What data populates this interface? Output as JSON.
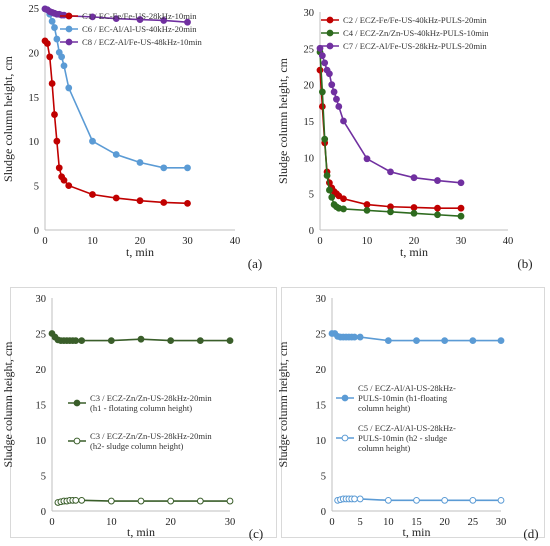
{
  "chart_data": [
    {
      "type": "line",
      "panel_label": "(a)",
      "xlabel": "t, min",
      "ylabel": "Sludge column height, cm",
      "xlim": [
        0,
        40
      ],
      "ylim": [
        0,
        25
      ],
      "xticks": [
        0,
        10,
        20,
        30,
        40
      ],
      "yticks": [
        0,
        5,
        10,
        15,
        20,
        25
      ],
      "grid": false,
      "legend_position": "top-left",
      "series": [
        {
          "name": "C1 / EC-Fe/Fe-US-28kHz-10min",
          "color": "#c00000",
          "marker": "filled",
          "x": [
            0,
            0.5,
            1,
            1.5,
            2,
            2.5,
            3,
            3.5,
            4,
            5,
            10,
            15,
            20,
            25,
            30
          ],
          "y": [
            21.3,
            21,
            19.5,
            16.5,
            13,
            10,
            7,
            6,
            5.6,
            5,
            4,
            3.6,
            3.3,
            3.1,
            3
          ]
        },
        {
          "name": "C6 / EC-Al/Al-US-40kHz-20min",
          "color": "#5b9bd5",
          "marker": "filled",
          "x": [
            0,
            0.5,
            1,
            1.5,
            2,
            2.5,
            3,
            3.5,
            4,
            5,
            10,
            15,
            20,
            25,
            30
          ],
          "y": [
            24.9,
            24.8,
            24.3,
            23.5,
            22.8,
            21.5,
            20,
            19.5,
            18.5,
            16,
            10,
            8.5,
            7.6,
            7,
            7
          ]
        },
        {
          "name": "C8 / ECZ-Al/Fe-US-48kHz-10min",
          "color": "#7030a0",
          "marker": "filled",
          "x": [
            0,
            0.5,
            1,
            1.5,
            2,
            2.5,
            3,
            3.5,
            4,
            5,
            10,
            15,
            20,
            25,
            30
          ],
          "y": [
            24.9,
            24.8,
            24.6,
            24.5,
            24.4,
            24.3,
            24.3,
            24.2,
            24.2,
            24.1,
            24,
            23.8,
            23.7,
            23.6,
            23.4
          ]
        }
      ]
    },
    {
      "type": "line",
      "panel_label": "(b)",
      "xlabel": "t, min",
      "ylabel": "Sludge column height, cm",
      "xlim": [
        0,
        40
      ],
      "ylim": [
        0,
        30
      ],
      "xticks": [
        0,
        10,
        20,
        30,
        40
      ],
      "yticks": [
        0,
        5,
        10,
        15,
        20,
        25,
        30
      ],
      "grid": false,
      "legend_position": "top-right",
      "series": [
        {
          "name": "C2 / ECZ-Fe/Fe-US-40kHz-PULS-20min",
          "color": "#c00000",
          "marker": "filled",
          "x": [
            0,
            0.5,
            1,
            1.5,
            2,
            2.5,
            3,
            3.5,
            4,
            5,
            10,
            15,
            20,
            25,
            30
          ],
          "y": [
            22,
            17,
            12,
            8,
            6.5,
            5.8,
            5.3,
            5,
            4.7,
            4.3,
            3.5,
            3.2,
            3.1,
            3,
            3
          ]
        },
        {
          "name": "C4 / ECZ-Zn/Zn-US-40kHz-PULS-10min",
          "color": "#2e6b1f",
          "marker": "filled",
          "x": [
            0,
            0.5,
            1,
            1.5,
            2,
            2.5,
            3,
            3.5,
            4,
            5,
            10,
            15,
            20,
            25,
            30
          ],
          "y": [
            24.5,
            19,
            12.5,
            7.5,
            5.5,
            4.5,
            3.5,
            3.2,
            3,
            2.9,
            2.7,
            2.5,
            2.3,
            2.1,
            1.9
          ]
        },
        {
          "name": "C7 / ECZ-Al/Fe-US-28kHz-PULS-20min",
          "color": "#7030a0",
          "marker": "filled",
          "x": [
            0,
            0.5,
            1,
            1.5,
            2,
            2.5,
            3,
            3.5,
            4,
            5,
            10,
            15,
            20,
            25,
            30
          ],
          "y": [
            25,
            24,
            23,
            22,
            21.5,
            20,
            19,
            18,
            17,
            15,
            9.8,
            8,
            7.2,
            6.8,
            6.5
          ]
        }
      ]
    },
    {
      "type": "line",
      "panel_label": "(c)",
      "xlabel": "t, min",
      "ylabel": "Sludge column height, cm",
      "xlim": [
        0,
        30
      ],
      "ylim": [
        0,
        30
      ],
      "xticks": [
        0,
        10,
        20,
        30
      ],
      "yticks": [
        0,
        5,
        10,
        15,
        20,
        25,
        30
      ],
      "grid": false,
      "legend_position": "center-left",
      "legend_lines": [
        [
          "C3 / ECZ-Zn/Zn-US-28kHz-20min",
          "(h1 - flotating column height)"
        ],
        [
          "C3 / ECZ-Zn/Zn-US-28kHz-20min",
          "(h2- sludge column height)"
        ]
      ],
      "series": [
        {
          "name": "C3 / ECZ-Zn/Zn-US-28kHz-20min (h1 - flotating column height)",
          "color": "#3a5e2a",
          "marker": "filled",
          "x": [
            0,
            0.5,
            1,
            1.5,
            2,
            2.5,
            3,
            3.5,
            4,
            5,
            10,
            15,
            20,
            25,
            30
          ],
          "y": [
            25,
            24.5,
            24.1,
            24,
            24,
            24,
            24,
            24,
            24,
            24,
            24,
            24.2,
            24,
            24,
            24
          ]
        },
        {
          "name": "C3 / ECZ-Zn/Zn-US-28kHz-20min (h2- sludge column height)",
          "color": "#3a5e2a",
          "marker": "hollow",
          "x": [
            0,
            0.5,
            1,
            1.5,
            2,
            2.5,
            3,
            3.5,
            4,
            5,
            10,
            15,
            20,
            25,
            30
          ],
          "y": [
            null,
            null,
            1.2,
            1.3,
            1.4,
            1.4,
            1.5,
            1.5,
            1.5,
            1.5,
            1.4,
            1.4,
            1.4,
            1.4,
            1.4
          ]
        }
      ]
    },
    {
      "type": "line",
      "panel_label": "(d)",
      "xlabel": "t, min",
      "ylabel": "Sludge column height, cm",
      "xlim": [
        0,
        30
      ],
      "ylim": [
        0,
        30
      ],
      "xticks": [
        0,
        5,
        10,
        15,
        20,
        25,
        30
      ],
      "yticks": [
        0,
        5,
        10,
        15,
        20,
        25,
        30
      ],
      "grid": false,
      "legend_position": "center-right",
      "legend_lines": [
        [
          "C5 / ECZ-Al/Al-US-28kHz-",
          "PULS-10min (h1-floating",
          "column height)"
        ],
        [
          "C5 / ECZ-Al/Al-US-28kHz-",
          "PULS-10min (h2 - sludge",
          "column height)"
        ]
      ],
      "series": [
        {
          "name": "C5 / ECZ-Al/Al-US-28kHz-PULS-10min (h1-floating column height)",
          "color": "#5b9bd5",
          "marker": "filled",
          "x": [
            0,
            0.5,
            1,
            1.5,
            2,
            2.5,
            3,
            3.5,
            4,
            5,
            10,
            15,
            20,
            25,
            30
          ],
          "y": [
            25,
            25,
            24.6,
            24.5,
            24.5,
            24.5,
            24.5,
            24.5,
            24.5,
            24.5,
            24,
            24,
            24,
            24,
            24
          ]
        },
        {
          "name": "C5 / ECZ-Al/Al-US-28kHz-PULS-10min (h2 - sludge column height)",
          "color": "#5b9bd5",
          "marker": "hollow",
          "x": [
            0,
            0.5,
            1,
            1.5,
            2,
            2.5,
            3,
            3.5,
            4,
            5,
            10,
            15,
            20,
            25,
            30
          ],
          "y": [
            null,
            null,
            1.5,
            1.6,
            1.7,
            1.7,
            1.7,
            1.7,
            1.7,
            1.7,
            1.5,
            1.5,
            1.5,
            1.5,
            1.5
          ]
        }
      ]
    }
  ]
}
